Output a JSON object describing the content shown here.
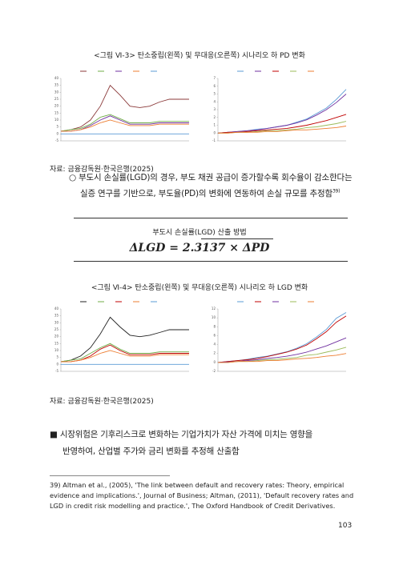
{
  "figure1": {
    "caption": "<그림 Ⅵ-3> 탄소중립(왼쪽) 및 무대응(오른쪽) 시나리오 하 PD 변화",
    "source": "자료: 금융감독원·한국은행(2025)"
  },
  "paragraph": {
    "line1": "○ 부도시 손실률(LGD)의 경우, 부도 채권 공급이 증가할수록 회수율이 감소한다는",
    "line2": "실증 연구를 기반으로, 부도율(PD)의 변화에 연동하여 손실 규모를 추정함",
    "footnote_ref": "39)"
  },
  "formula_box": {
    "title": "부도시 손실률(LGD) 산출 방법",
    "formula": "ΔLGD = 2.3137 × ΔPD"
  },
  "figure2": {
    "caption": "<그림 Ⅵ-4> 탄소중립(왼쪽) 및 무대응(오른쪽) 시나리오 하 LGD 변화",
    "source": "자료: 금융감독원·한국은행(2025)"
  },
  "bullet": {
    "line1": "■  시장위험은  기후리스크로  변화하는  기업가치가  자산  가격에  미치는  영향을",
    "line2": "반영하여, 산업별 주가와 금리 변화를 추정해 산출함"
  },
  "footnote": "39) Altman et al., (2005), 'The link between default and recovery rates: Theory, empirical evidence and implications.', Journal of Business; Altman, (2011), 'Default recovery rates and LGD in credit risk modelling and practice.', The Oxford Handbook of Credit Derivatives.",
  "page_number": "103",
  "chart_data": [
    {
      "type": "line",
      "ylim": [
        -5,
        40
      ],
      "yticks": [
        -5,
        0,
        5,
        10,
        15,
        20,
        25,
        30,
        35,
        40
      ],
      "series": [
        {
          "color": "#8b3a3a",
          "values": [
            2,
            3,
            5,
            10,
            20,
            35,
            28,
            20,
            19,
            20,
            23,
            25,
            25,
            25
          ]
        },
        {
          "color": "#70ad47",
          "values": [
            2,
            3,
            4,
            7,
            12,
            14,
            11,
            8,
            8,
            8,
            9,
            9,
            9,
            9
          ]
        },
        {
          "color": "#7030a0",
          "values": [
            2,
            2,
            3,
            6,
            10,
            13,
            10,
            7,
            7,
            7,
            8,
            8,
            8,
            8
          ]
        },
        {
          "color": "#ed7d31",
          "values": [
            2,
            2,
            3,
            5,
            8,
            10,
            8,
            6,
            6,
            6,
            7,
            7,
            7,
            7
          ]
        },
        {
          "color": "#5b9bd5",
          "values": [
            0,
            0,
            0,
            0,
            0,
            0,
            0,
            0,
            0,
            0,
            0,
            0,
            0,
            0
          ]
        }
      ]
    },
    {
      "type": "line",
      "ylim": [
        -1,
        7
      ],
      "yticks": [
        -1,
        0,
        1,
        2,
        3,
        4,
        5,
        6,
        7
      ],
      "series": [
        {
          "color": "#5b9bd5",
          "values": [
            0,
            0.1,
            0.2,
            0.3,
            0.5,
            0.6,
            0.8,
            1.0,
            1.4,
            1.8,
            2.5,
            3.2,
            4.3,
            5.6
          ]
        },
        {
          "color": "#7030a0",
          "values": [
            0,
            0.1,
            0.2,
            0.3,
            0.4,
            0.6,
            0.8,
            1.0,
            1.3,
            1.7,
            2.3,
            3.0,
            3.9,
            5.0
          ]
        },
        {
          "color": "#c00000",
          "values": [
            0,
            0.1,
            0.1,
            0.2,
            0.3,
            0.4,
            0.5,
            0.6,
            0.8,
            1.0,
            1.3,
            1.6,
            2.0,
            2.4
          ]
        },
        {
          "color": "#9bbb59",
          "values": [
            0,
            0,
            0.1,
            0.1,
            0.2,
            0.3,
            0.3,
            0.4,
            0.5,
            0.7,
            0.8,
            1.0,
            1.2,
            1.5
          ]
        },
        {
          "color": "#ed7d31",
          "values": [
            0,
            0,
            0.1,
            0.1,
            0.1,
            0.2,
            0.2,
            0.3,
            0.4,
            0.4,
            0.5,
            0.6,
            0.7,
            0.9
          ]
        }
      ]
    },
    {
      "type": "line",
      "ylim": [
        -5,
        40
      ],
      "yticks": [
        -5,
        0,
        5,
        10,
        15,
        20,
        25,
        30,
        35,
        40
      ],
      "series": [
        {
          "color": "#222222",
          "values": [
            2,
            3,
            6,
            12,
            22,
            34,
            27,
            21,
            20,
            21,
            23,
            25,
            25,
            25
          ]
        },
        {
          "color": "#70ad47",
          "values": [
            2,
            3,
            4,
            8,
            12,
            15,
            11,
            8,
            8,
            8,
            9,
            9,
            9,
            9
          ]
        },
        {
          "color": "#c00000",
          "values": [
            2,
            2,
            3,
            6,
            11,
            14,
            10,
            7,
            7,
            7,
            8,
            8,
            8,
            8
          ]
        },
        {
          "color": "#ed7d31",
          "values": [
            2,
            2,
            3,
            5,
            8,
            10,
            8,
            6,
            6,
            6,
            7,
            7,
            7,
            7
          ]
        },
        {
          "color": "#5b9bd5",
          "values": [
            0,
            0,
            0,
            0,
            0,
            0,
            0,
            0,
            0,
            0,
            0,
            0,
            0,
            0
          ]
        }
      ]
    },
    {
      "type": "line",
      "ylim": [
        -2,
        12
      ],
      "yticks": [
        -2,
        0,
        2,
        4,
        6,
        8,
        10,
        12
      ],
      "series": [
        {
          "color": "#5b9bd5",
          "values": [
            0,
            0.2,
            0.4,
            0.7,
            1.1,
            1.4,
            1.9,
            2.4,
            3.2,
            4.2,
            5.7,
            7.4,
            9.9,
            11.2
          ]
        },
        {
          "color": "#c00000",
          "values": [
            0,
            0.2,
            0.4,
            0.6,
            0.9,
            1.3,
            1.8,
            2.3,
            3.0,
            3.9,
            5.3,
            6.9,
            9.0,
            10.4
          ]
        },
        {
          "color": "#7030a0",
          "values": [
            0,
            0.1,
            0.2,
            0.4,
            0.6,
            0.9,
            1.1,
            1.4,
            1.8,
            2.3,
            3.0,
            3.7,
            4.6,
            5.5
          ]
        },
        {
          "color": "#9bbb59",
          "values": [
            0,
            0,
            0.2,
            0.2,
            0.4,
            0.6,
            0.7,
            0.9,
            1.1,
            1.6,
            1.8,
            2.3,
            2.8,
            3.4
          ]
        },
        {
          "color": "#ed7d31",
          "values": [
            0,
            0,
            0.2,
            0.2,
            0.2,
            0.4,
            0.4,
            0.6,
            0.8,
            0.9,
            1.1,
            1.4,
            1.6,
            2.0
          ]
        }
      ]
    }
  ]
}
